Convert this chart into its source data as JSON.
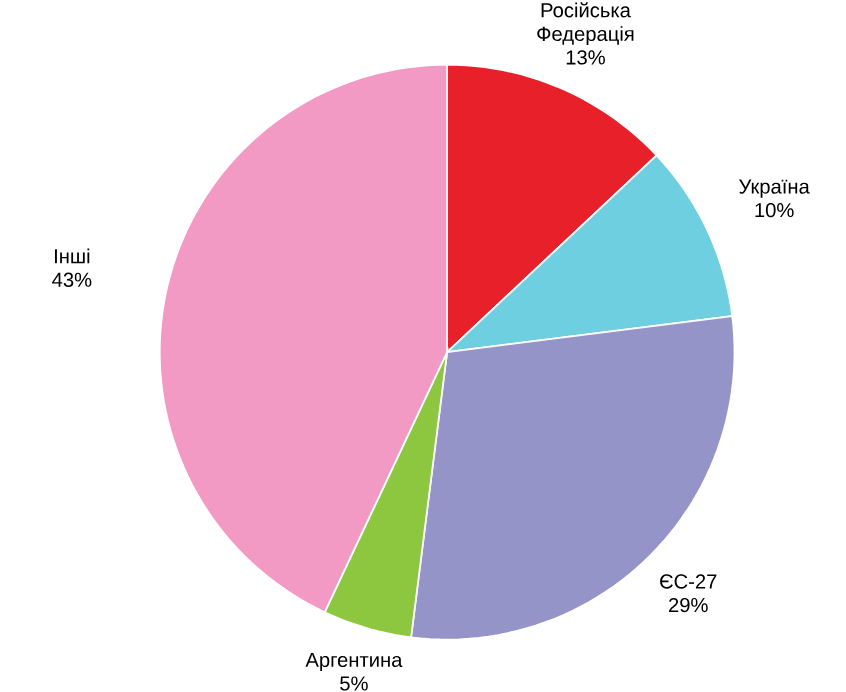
{
  "chart_data": {
    "type": "pie",
    "categories": [
      "Російська Федерація",
      "Україна",
      "ЄС-27",
      "Аргентина",
      "Інші"
    ],
    "values": [
      13,
      10,
      29,
      5,
      43
    ],
    "colors": [
      "#e8202a",
      "#6dcfdf",
      "#9594c9",
      "#8dc63f",
      "#f29ac4"
    ],
    "value_labels": [
      "13%",
      "10%",
      "29%",
      "5%",
      "43%"
    ]
  }
}
